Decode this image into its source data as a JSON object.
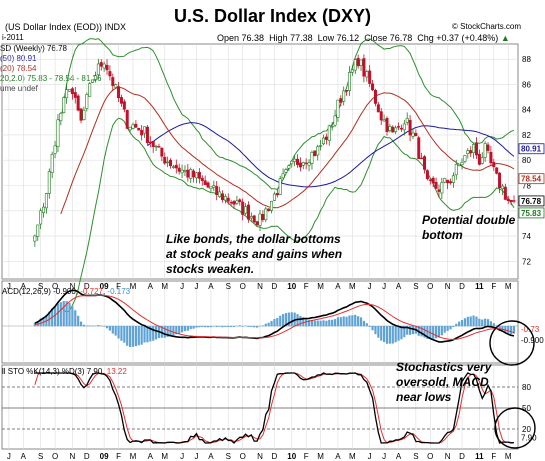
{
  "chart_data": {
    "type": "candlestick",
    "title": "U.S. Dollar Index  (DXY)",
    "brand": "© StockCharts.com",
    "symbol_line": "(US Dollar Index (EOD)) INDX",
    "period_label": "SD (Weekly) 76.78",
    "date_label": "i-2011",
    "quote": {
      "open": "Open 76.38",
      "high": "High 77.38",
      "low": "Low 76.12",
      "close": "Close 76.78",
      "chg": "Chg +0.37 (+0.48%)",
      "chg_arrow": "▲"
    },
    "overlay_legend": [
      "(50) 80.91",
      "(20) 78.54",
      "20,2.0) 75.83 - 78.54 - 81.26",
      "ume undef"
    ],
    "price_axis": {
      "ticks": [
        72,
        74,
        76,
        78,
        80,
        82,
        84,
        86,
        88
      ],
      "ylim": [
        70.6,
        89.2
      ]
    },
    "price_value_labels": [
      {
        "text": "80.91",
        "value": 80.91,
        "color": "#1a1aa0"
      },
      {
        "text": "78.54",
        "value": 78.54,
        "color": "#b03020"
      },
      {
        "text": "76.78",
        "value": 76.78,
        "color": "#000000"
      },
      {
        "text": "75.83",
        "value": 75.83,
        "color": "#1f7a1f"
      }
    ],
    "x_axis": {
      "labels": [
        "J",
        "A",
        "S",
        "O",
        "N",
        "D",
        "09",
        "F",
        "M",
        "A",
        "M",
        "J",
        "J",
        "A",
        "S",
        "O",
        "N",
        "D",
        "10",
        "F",
        "M",
        "A",
        "M",
        "J",
        "J",
        "A",
        "S",
        "O",
        "N",
        "D",
        "11",
        "F",
        "M"
      ],
      "bold": [
        "09",
        "10",
        "11"
      ]
    },
    "price_series": {
      "name": "US Dollar Index weekly",
      "keypoints": [
        [
          0,
          73.0
        ],
        [
          6,
          72.5
        ],
        [
          10,
          73.8
        ],
        [
          14,
          77.5
        ],
        [
          18,
          83.0
        ],
        [
          22,
          86.0
        ],
        [
          26,
          83.0
        ],
        [
          30,
          86.5
        ],
        [
          34,
          88.0
        ],
        [
          38,
          85.5
        ],
        [
          42,
          83.0
        ],
        [
          48,
          82.2
        ],
        [
          54,
          80.3
        ],
        [
          60,
          79.3
        ],
        [
          66,
          78.6
        ],
        [
          72,
          77.5
        ],
        [
          78,
          76.8
        ],
        [
          84,
          75.8
        ],
        [
          88,
          75.2
        ],
        [
          92,
          76.8
        ],
        [
          96,
          78.5
        ],
        [
          100,
          79.8
        ],
        [
          104,
          80.2
        ],
        [
          108,
          80.8
        ],
        [
          112,
          82.3
        ],
        [
          116,
          85.0
        ],
        [
          120,
          87.0
        ],
        [
          122,
          88.0
        ],
        [
          126,
          86.0
        ],
        [
          130,
          83.5
        ],
        [
          134,
          82.0
        ],
        [
          138,
          83.3
        ],
        [
          142,
          81.5
        ],
        [
          146,
          78.0
        ],
        [
          150,
          77.8
        ],
        [
          154,
          78.5
        ],
        [
          158,
          80.0
        ],
        [
          162,
          81.0
        ],
        [
          164,
          80.0
        ],
        [
          166,
          80.8
        ],
        [
          170,
          78.5
        ],
        [
          172,
          77.8
        ],
        [
          174,
          76.8
        ],
        [
          176,
          76.5
        ]
      ]
    },
    "macd": {
      "label": "ACD(12,26,9) -0.900",
      "signal_label": "-0.727",
      "hist_label": "-0.173",
      "value_labels": [
        "-0.73",
        "-0.900"
      ]
    },
    "stochastics": {
      "label": "ll STO %K(14,3) %D(3) 7.90,",
      "d_label": "13.22",
      "axis_ticks": [
        20,
        50,
        80
      ],
      "value_label": "7.90"
    },
    "annotations": [
      {
        "text": "Like bonds, the dollar bottoms\nat stock peaks and gains when\nstocks weaken."
      },
      {
        "text": "Potential double\nbottom"
      },
      {
        "text": "Stochastics very\noversold, MACD\nnear lows"
      }
    ],
    "colors": {
      "up": "#1f7a1f",
      "down": "#c0102a",
      "ma50": "#1a1aa0",
      "ma20": "#b03020",
      "bb": "#2f8f2f",
      "macd_hist": "#5fa3d6",
      "stoch_k": "#000000",
      "stoch_d": "#e03030"
    }
  }
}
